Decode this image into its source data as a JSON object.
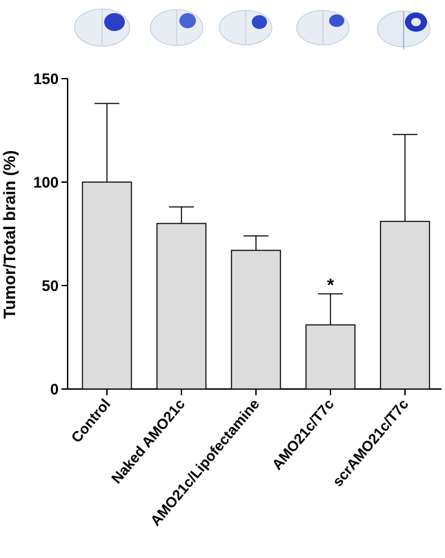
{
  "chart_data": {
    "type": "bar",
    "y_label": "Tumor/Total brain (%)",
    "categories": [
      "Control",
      "Naked AMO21c",
      "AMO21c/Lipofectamine",
      "AMO21c/T7c",
      "scrAMO21c/T7c"
    ],
    "values": [
      100,
      80,
      67,
      31,
      81
    ],
    "errors": [
      38,
      8,
      7,
      15,
      42
    ],
    "color": "#dcdcdc",
    "ylim": [
      0,
      150
    ],
    "yticks": [
      0,
      50,
      100,
      150
    ],
    "annotation": {
      "text": "*",
      "category": "AMO21c/T7c"
    }
  }
}
